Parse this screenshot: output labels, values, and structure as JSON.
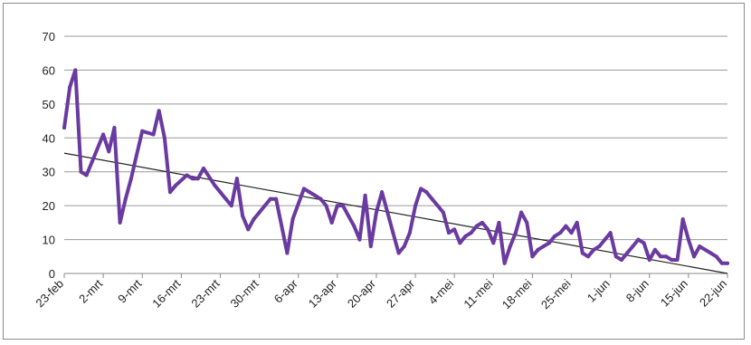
{
  "chart_data": {
    "type": "line",
    "title": "",
    "xlabel": "",
    "ylabel": "",
    "ylim": [
      0,
      70
    ],
    "y_ticks": [
      "0",
      "10",
      "20",
      "30",
      "40",
      "50",
      "60",
      "70"
    ],
    "x_tick_labels": [
      "23-feb",
      "2-mrt",
      "9-mrt",
      "16-mrt",
      "23-mrt",
      "30-mrt",
      "6-apr",
      "13-apr",
      "20-apr",
      "27-apr",
      "4-mei",
      "11-mei",
      "18-mei",
      "25-mei",
      "1-jun",
      "8-jun",
      "15-jun",
      "22-jun"
    ],
    "x_day_range": [
      0,
      119
    ],
    "grid": "horizontal",
    "legend": "none",
    "colors": {
      "series": "#6a3aa0",
      "trend": "#222222",
      "grid": "#9a9a9a"
    },
    "series": [
      {
        "x": [
          0,
          1,
          2,
          3,
          4,
          5,
          7,
          8,
          9,
          10,
          11,
          12,
          14,
          16,
          17,
          18,
          19,
          20,
          22,
          23,
          24,
          25,
          27,
          28,
          29,
          30,
          31,
          32,
          33,
          34,
          35,
          36,
          37,
          38,
          40,
          41,
          43,
          44,
          45,
          46,
          47,
          48,
          49,
          50,
          51,
          52,
          53,
          54,
          55,
          56,
          57,
          58,
          59,
          60,
          61,
          62,
          63,
          64,
          65,
          66,
          67,
          68,
          69,
          70,
          71,
          72,
          73,
          74,
          75,
          76,
          77,
          78,
          79,
          80,
          81,
          82,
          83,
          84,
          85,
          86,
          87,
          88,
          89,
          90,
          91,
          92,
          93,
          94,
          95,
          96,
          97,
          98,
          99,
          100,
          101,
          102,
          103,
          104,
          105,
          106,
          107,
          108,
          109,
          110,
          111,
          112,
          113,
          114,
          115,
          116,
          117,
          118,
          119
        ],
        "values": [
          43,
          55,
          60,
          30,
          29,
          33,
          41,
          36,
          43,
          15,
          22,
          28,
          42,
          41,
          48,
          40,
          24,
          26,
          29,
          28,
          28,
          31,
          26,
          24,
          22,
          20,
          28,
          17,
          13,
          16,
          18,
          20,
          22,
          22,
          6,
          16,
          25,
          24,
          23,
          22,
          20,
          15,
          20,
          20,
          17,
          14,
          10,
          23,
          8,
          18,
          24,
          18,
          12,
          6,
          8,
          12,
          20,
          25,
          24,
          22,
          20,
          18,
          12,
          13,
          9,
          11,
          12,
          14,
          15,
          13,
          9,
          15,
          3,
          8,
          12,
          18,
          15,
          5,
          7,
          8,
          9,
          11,
          12,
          14,
          12,
          15,
          6,
          5,
          7,
          8,
          10,
          12,
          5,
          4,
          6,
          8,
          10,
          9,
          4,
          7,
          5,
          5,
          4,
          4,
          16,
          10,
          5,
          8,
          7,
          6,
          5,
          3,
          3
        ]
      }
    ],
    "trendline": {
      "x": [
        0,
        119
      ],
      "values": [
        35.5,
        0
      ]
    }
  }
}
